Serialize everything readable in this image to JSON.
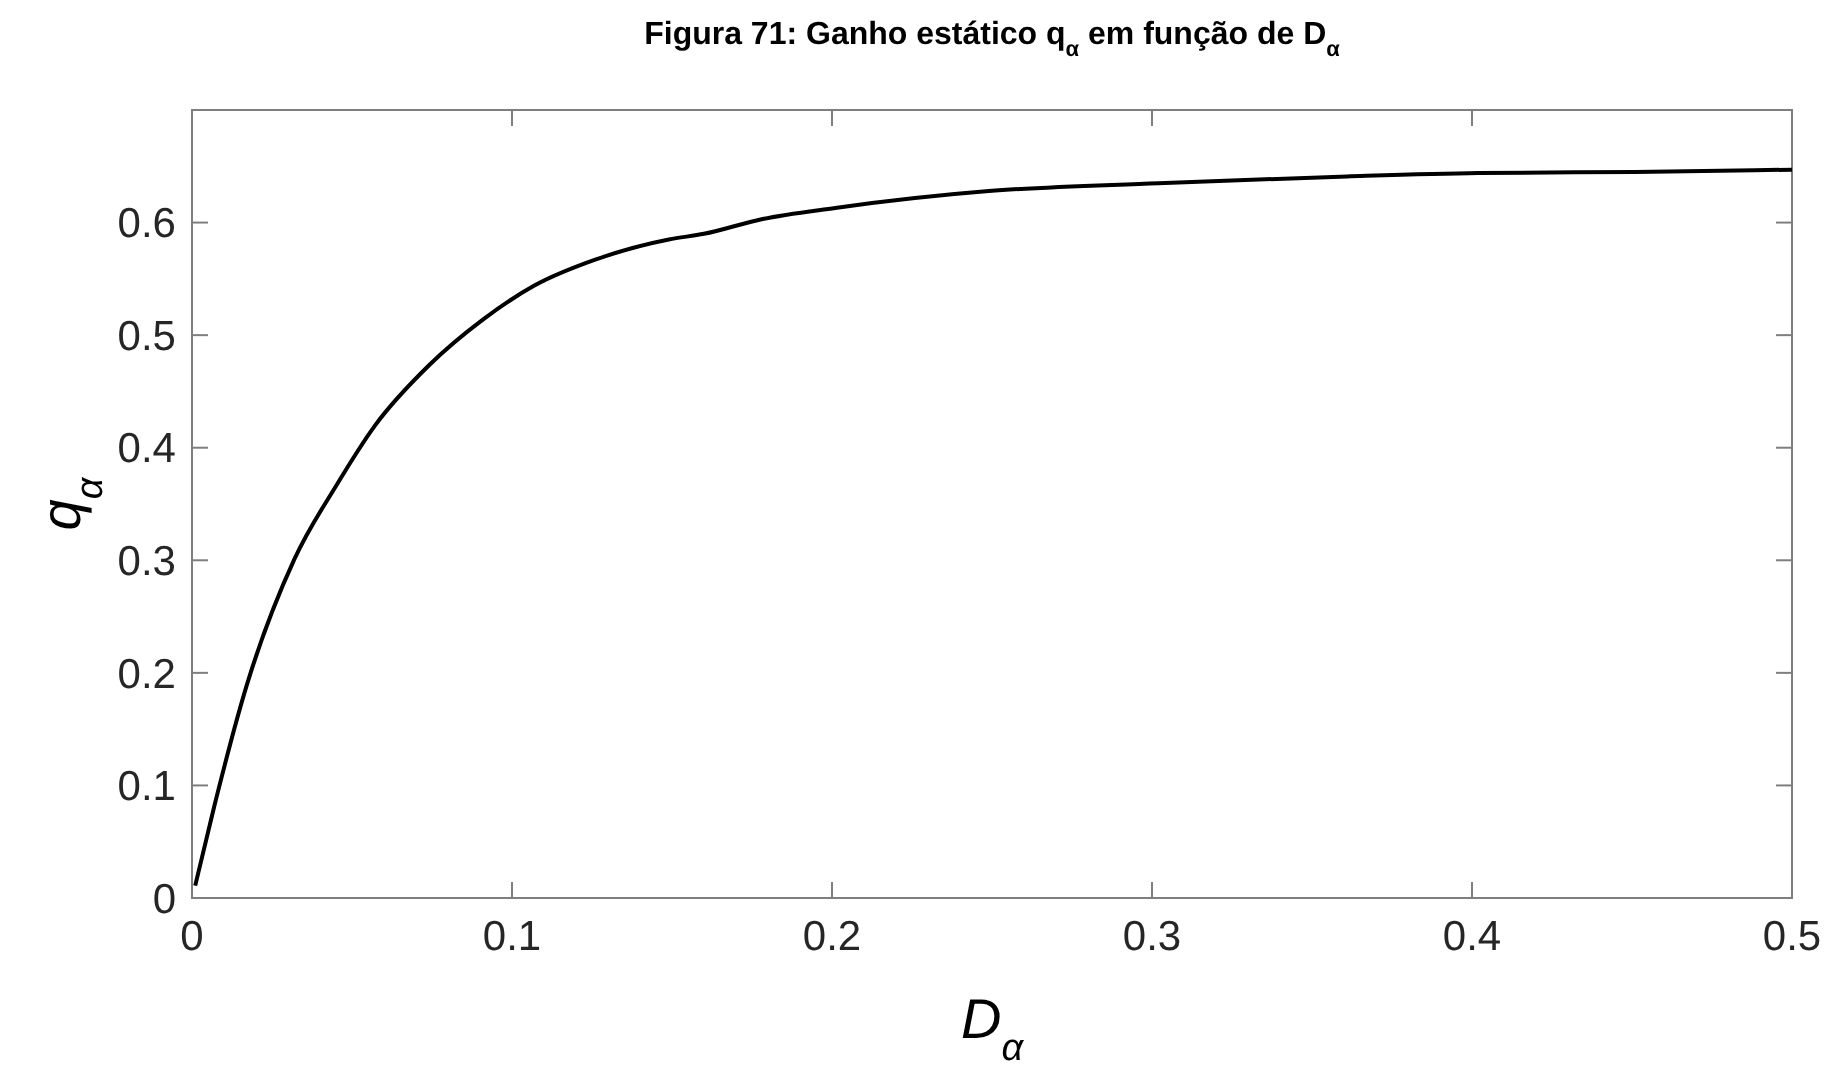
{
  "chart_data": {
    "type": "line",
    "title": "Figura 71: Ganho estático q$_{α}$ em função de D$_{α}$",
    "xlabel": "D$_{α}$",
    "ylabel": "q$_{α}$",
    "xlim": [
      0,
      0.5
    ],
    "ylim": [
      0,
      0.7
    ],
    "xticks": [
      0,
      0.1,
      0.2,
      0.3,
      0.4,
      0.5
    ],
    "yticks": [
      0,
      0.1,
      0.2,
      0.3,
      0.4,
      0.5,
      0.6
    ],
    "grid": false,
    "marker": "none",
    "line_style": "solid",
    "series": [
      {
        "color": "#000000",
        "x": [
          0.001,
          0.007,
          0.017,
          0.032,
          0.045,
          0.057,
          0.074,
          0.091,
          0.107,
          0.126,
          0.149,
          0.16,
          0.178,
          0.201,
          0.249,
          0.302,
          0.361,
          0.402,
          0.451,
          0.5
        ],
        "values": [
          0.011,
          0.082,
          0.188,
          0.301,
          0.366,
          0.419,
          0.473,
          0.514,
          0.544,
          0.567,
          0.585,
          0.59,
          0.603,
          0.613,
          0.628,
          0.635,
          0.641,
          0.644,
          0.645,
          0.647
        ]
      }
    ]
  }
}
